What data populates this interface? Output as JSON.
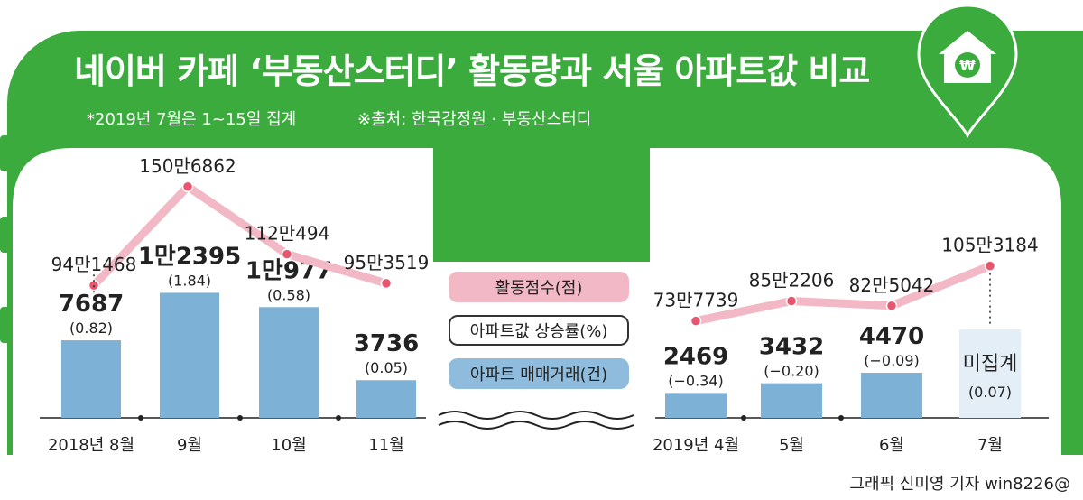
{
  "header": {
    "title": "네이버 카페 ‘부동산스터디’ 활동량과 서울 아파트값 비교",
    "note_left": "*2019년 7월은 1~15일 집계",
    "note_right": "※출처: 한국감정원 · 부동산스터디"
  },
  "credit": "그래픽 신미영 기자 win8226@",
  "colors": {
    "green": "#3aab3c",
    "bar": "#7eb1d6",
    "line": "#f2b8c6",
    "dot": "#e8556f",
    "uncounted_bar": "#e3eef6"
  },
  "icons": [
    "house-won-icon",
    "wave-break-icon"
  ],
  "legend": {
    "score": "활동점수(점)",
    "rate": "아파트값 상승률(%)",
    "trades": "아파트 매매거래(건)"
  },
  "chart_data": [
    {
      "type": "bar",
      "period": "2018",
      "categories": [
        "2018년 8월",
        "9월",
        "10월",
        "11월"
      ],
      "series": [
        {
          "name": "아파트 매매거래(건)",
          "values": [
            7687,
            12395,
            10977,
            3736
          ],
          "labels": [
            "7687",
            "1만2395",
            "1만977",
            "3736"
          ]
        },
        {
          "name": "아파트값 상승률(%)",
          "values": [
            0.82,
            1.84,
            0.58,
            0.05
          ],
          "labels": [
            "(0.82)",
            "(1.84)",
            "(0.58)",
            "(0.05)"
          ]
        },
        {
          "name": "활동점수(점)",
          "type": "line",
          "values": [
            941468,
            1506862,
            1120494,
            953519
          ],
          "labels": [
            "94만1468",
            "150만6862",
            "112만494",
            "95만3519"
          ]
        }
      ]
    },
    {
      "type": "bar",
      "period": "2019",
      "categories": [
        "2019년 4월",
        "5월",
        "6월",
        "7월"
      ],
      "series": [
        {
          "name": "아파트 매매거래(건)",
          "values": [
            2469,
            3432,
            4470,
            null
          ],
          "labels": [
            "2469",
            "3432",
            "4470",
            "미집계"
          ]
        },
        {
          "name": "아파트값 상승률(%)",
          "values": [
            -0.34,
            -0.2,
            -0.09,
            0.07
          ],
          "labels": [
            "(−0.34)",
            "(−0.20)",
            "(−0.09)",
            "(0.07)"
          ]
        },
        {
          "name": "활동점수(점)",
          "type": "line",
          "values": [
            737739,
            852206,
            825042,
            1053184
          ],
          "labels": [
            "73만7739",
            "85만2206",
            "82만5042",
            "105만3184"
          ]
        }
      ]
    }
  ]
}
